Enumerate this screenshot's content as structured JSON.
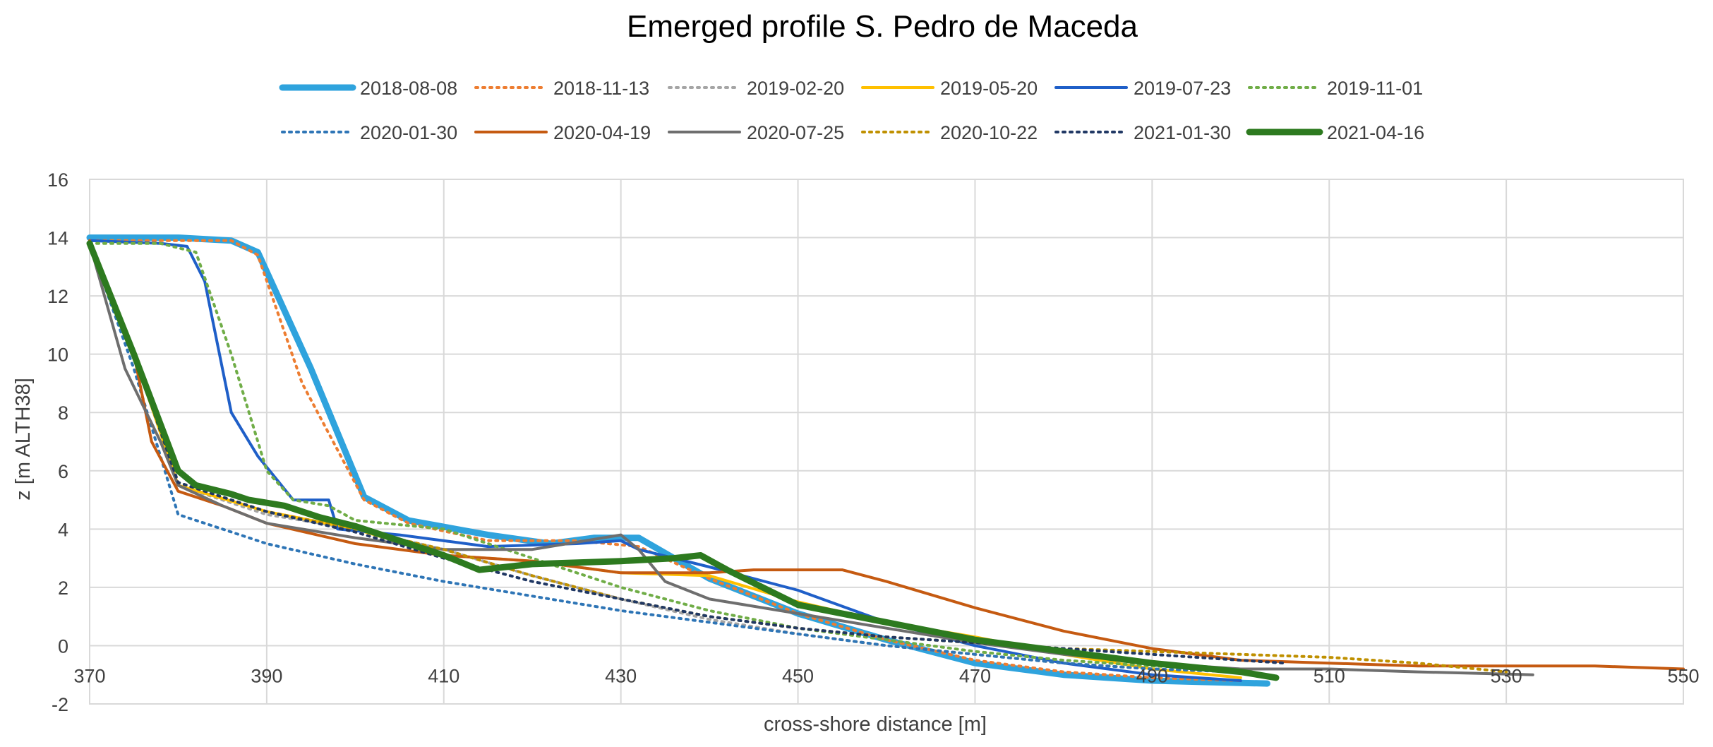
{
  "chart_data": {
    "type": "line",
    "title": "Emerged profile S. Pedro de Maceda",
    "xlabel": "cross-shore distance [m]",
    "ylabel": "z [m ALTH38]",
    "xlim": [
      370,
      550
    ],
    "ylim": [
      -2,
      16
    ],
    "x_ticks": [
      "370",
      "390",
      "410",
      "430",
      "450",
      "470",
      "490",
      "510",
      "530",
      "550"
    ],
    "y_ticks": [
      "-2",
      "0",
      "2",
      "4",
      "6",
      "8",
      "10",
      "12",
      "14",
      "16"
    ],
    "grid": true,
    "legend_position": "top",
    "series": [
      {
        "name": "2018-08-08",
        "color": "#2fa3dd",
        "style": "solid",
        "weight": "heavy",
        "x": [
          370,
          380,
          386,
          389,
          395,
          401,
          406,
          415,
          422,
          427,
          432,
          440,
          450,
          460,
          470,
          480,
          490,
          496,
          503
        ],
        "y": [
          14.0,
          14.0,
          13.9,
          13.5,
          9.5,
          5.1,
          4.3,
          3.8,
          3.5,
          3.7,
          3.7,
          2.3,
          1.1,
          0.2,
          -0.6,
          -1.0,
          -1.2,
          -1.25,
          -1.3
        ]
      },
      {
        "name": "2018-11-13",
        "color": "#ed7d31",
        "style": "dotted",
        "weight": "normal",
        "x": [
          370,
          380,
          386,
          389,
          394,
          401,
          406,
          415,
          425,
          432,
          440,
          450,
          460,
          470,
          480,
          490,
          500
        ],
        "y": [
          13.9,
          13.9,
          13.9,
          13.4,
          9.0,
          5.0,
          4.2,
          3.6,
          3.6,
          3.4,
          2.3,
          1.1,
          0.2,
          -0.5,
          -0.9,
          -1.1,
          -1.2
        ]
      },
      {
        "name": "2019-02-20",
        "color": "#a5a5a5",
        "style": "dotted",
        "weight": "normal",
        "x": [
          370,
          375,
          380,
          390,
          400,
          410,
          420,
          430,
          440,
          450,
          460,
          470,
          480,
          490,
          500
        ],
        "y": [
          13.8,
          10.0,
          5.5,
          4.5,
          4.0,
          3.3,
          2.4,
          1.6,
          0.9,
          0.4,
          0.0,
          -0.3,
          -0.6,
          -0.8,
          -0.9
        ]
      },
      {
        "name": "2019-05-20",
        "color": "#ffc000",
        "style": "solid",
        "weight": "normal",
        "x": [
          370,
          375,
          380,
          390,
          400,
          410,
          420,
          430,
          440,
          450,
          460,
          470,
          480,
          490,
          500
        ],
        "y": [
          13.8,
          10.0,
          5.5,
          4.6,
          4.0,
          3.1,
          2.9,
          2.5,
          2.4,
          1.5,
          0.8,
          0.3,
          -0.3,
          -0.8,
          -1.1
        ]
      },
      {
        "name": "2019-07-23",
        "color": "#1f5fc8",
        "style": "solid",
        "weight": "normal",
        "x": [
          370,
          378,
          381,
          383,
          386,
          389,
          393,
          397,
          398,
          405,
          415,
          425,
          430,
          432,
          440,
          450,
          460,
          470,
          480,
          490,
          500
        ],
        "y": [
          13.9,
          13.8,
          13.7,
          12.5,
          8.0,
          6.5,
          5.0,
          5.0,
          4.0,
          3.8,
          3.4,
          3.5,
          3.6,
          3.3,
          2.7,
          1.9,
          0.8,
          0.0,
          -0.6,
          -1.0,
          -1.2
        ]
      },
      {
        "name": "2019-11-01",
        "color": "#70ad47",
        "style": "dotted",
        "weight": "normal",
        "x": [
          370,
          378,
          382,
          386,
          390,
          393,
          397,
          400,
          410,
          420,
          430,
          440,
          450,
          460,
          470,
          480,
          490,
          500
        ],
        "y": [
          13.8,
          13.8,
          13.5,
          10.0,
          6.0,
          5.0,
          4.8,
          4.3,
          4.0,
          3.0,
          2.0,
          1.2,
          0.6,
          0.2,
          -0.2,
          -0.5,
          -0.7,
          -0.8
        ]
      },
      {
        "name": "2020-01-30",
        "color": "#2e75b6",
        "style": "dotted",
        "weight": "normal",
        "x": [
          370,
          375,
          380,
          390,
          400,
          410,
          420,
          430,
          440,
          450,
          460,
          470,
          480,
          490,
          500
        ],
        "y": [
          13.8,
          9.5,
          4.5,
          3.5,
          2.8,
          2.2,
          1.7,
          1.2,
          0.8,
          0.4,
          0.0,
          -0.3,
          -0.6,
          -0.8,
          -0.9
        ]
      },
      {
        "name": "2020-04-19",
        "color": "#c55a11",
        "style": "solid",
        "weight": "normal",
        "x": [
          370,
          375,
          377,
          380,
          385,
          390,
          400,
          410,
          420,
          430,
          440,
          445,
          450,
          455,
          460,
          470,
          480,
          490,
          500,
          510,
          520,
          530,
          540,
          550
        ],
        "y": [
          13.9,
          10.0,
          7.0,
          5.3,
          4.8,
          4.2,
          3.5,
          3.1,
          2.9,
          2.5,
          2.5,
          2.6,
          2.6,
          2.6,
          2.2,
          1.3,
          0.5,
          -0.1,
          -0.5,
          -0.6,
          -0.7,
          -0.7,
          -0.7,
          -0.8
        ]
      },
      {
        "name": "2020-07-25",
        "color": "#6e6e6e",
        "style": "solid",
        "weight": "normal",
        "x": [
          370,
          374,
          378,
          380,
          385,
          390,
          400,
          410,
          420,
          428,
          430,
          432,
          435,
          440,
          450,
          460,
          470,
          480,
          490,
          500,
          510,
          520,
          533
        ],
        "y": [
          13.8,
          9.5,
          7.0,
          5.5,
          4.8,
          4.2,
          3.7,
          3.3,
          3.3,
          3.7,
          3.8,
          3.3,
          2.2,
          1.6,
          1.1,
          0.6,
          0.1,
          -0.3,
          -0.6,
          -0.8,
          -0.8,
          -0.9,
          -1.0
        ]
      },
      {
        "name": "2020-10-22",
        "color": "#bf9000",
        "style": "dotted",
        "weight": "normal",
        "x": [
          370,
          375,
          380,
          390,
          400,
          410,
          420,
          430,
          440,
          450,
          460,
          470,
          480,
          490,
          500,
          510,
          520,
          530
        ],
        "y": [
          13.8,
          10.0,
          5.6,
          4.6,
          4.0,
          3.3,
          2.4,
          1.6,
          1.0,
          0.6,
          0.3,
          0.1,
          -0.1,
          -0.2,
          -0.3,
          -0.4,
          -0.6,
          -0.9
        ]
      },
      {
        "name": "2021-01-30",
        "color": "#203864",
        "style": "dotted",
        "weight": "normal",
        "x": [
          370,
          375,
          380,
          390,
          400,
          410,
          420,
          430,
          440,
          450,
          460,
          470,
          480,
          490,
          500,
          505
        ],
        "y": [
          13.8,
          10.0,
          5.6,
          4.6,
          3.9,
          3.0,
          2.2,
          1.6,
          1.0,
          0.6,
          0.3,
          0.1,
          -0.1,
          -0.3,
          -0.5,
          -0.6
        ]
      },
      {
        "name": "2021-04-16",
        "color": "#2d7a1f",
        "style": "solid",
        "weight": "heavy",
        "x": [
          370,
          375,
          380,
          382,
          386,
          388,
          392,
          396,
          400,
          410,
          414,
          420,
          430,
          436,
          439,
          442,
          450,
          460,
          470,
          480,
          490,
          500,
          504
        ],
        "y": [
          13.8,
          10.0,
          6.0,
          5.5,
          5.2,
          5.0,
          4.8,
          4.4,
          4.1,
          3.1,
          2.6,
          2.8,
          2.9,
          3.0,
          3.1,
          2.6,
          1.4,
          0.8,
          0.2,
          -0.2,
          -0.6,
          -0.9,
          -1.1
        ]
      }
    ]
  }
}
